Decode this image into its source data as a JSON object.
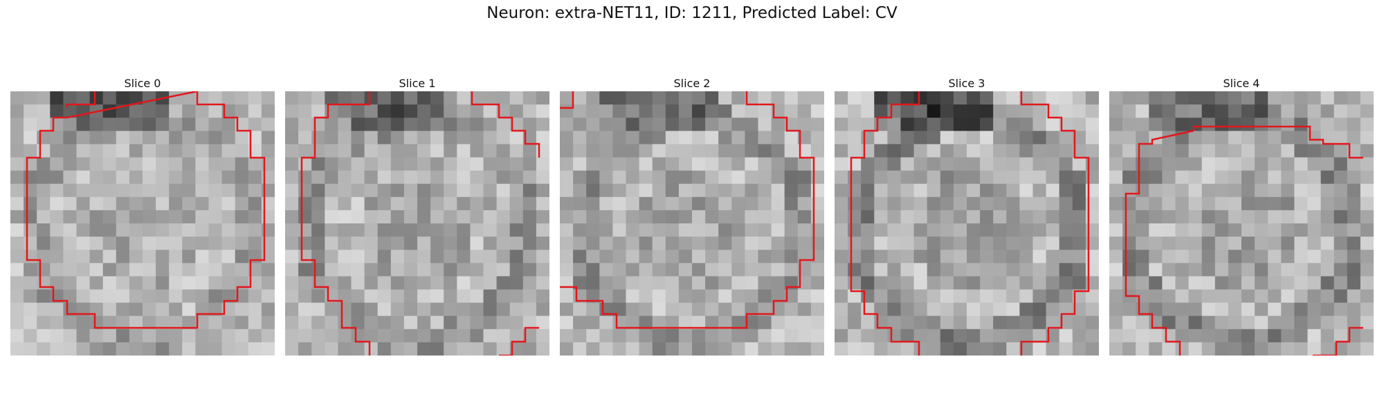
{
  "figure": {
    "title": "Neuron: extra-NET11, ID: 1211, Predicted Label: CV",
    "neuron_name": "extra-NET11",
    "neuron_id": 1211,
    "predicted_label": "CV"
  },
  "panels": [
    {
      "title": "Slice 0",
      "seed": 11,
      "dark_top": 0.85,
      "ring": 0.35
    },
    {
      "title": "Slice 1",
      "seed": 23,
      "dark_top": 0.75,
      "ring": 0.55
    },
    {
      "title": "Slice 2",
      "seed": 37,
      "dark_top": 0.55,
      "ring": 0.6
    },
    {
      "title": "Slice 3",
      "seed": 41,
      "dark_top": 0.9,
      "ring": 0.8
    },
    {
      "title": "Slice 4",
      "seed": 53,
      "dark_top": 0.6,
      "ring": 0.7
    }
  ],
  "colors": {
    "contour": "#e3161b"
  }
}
